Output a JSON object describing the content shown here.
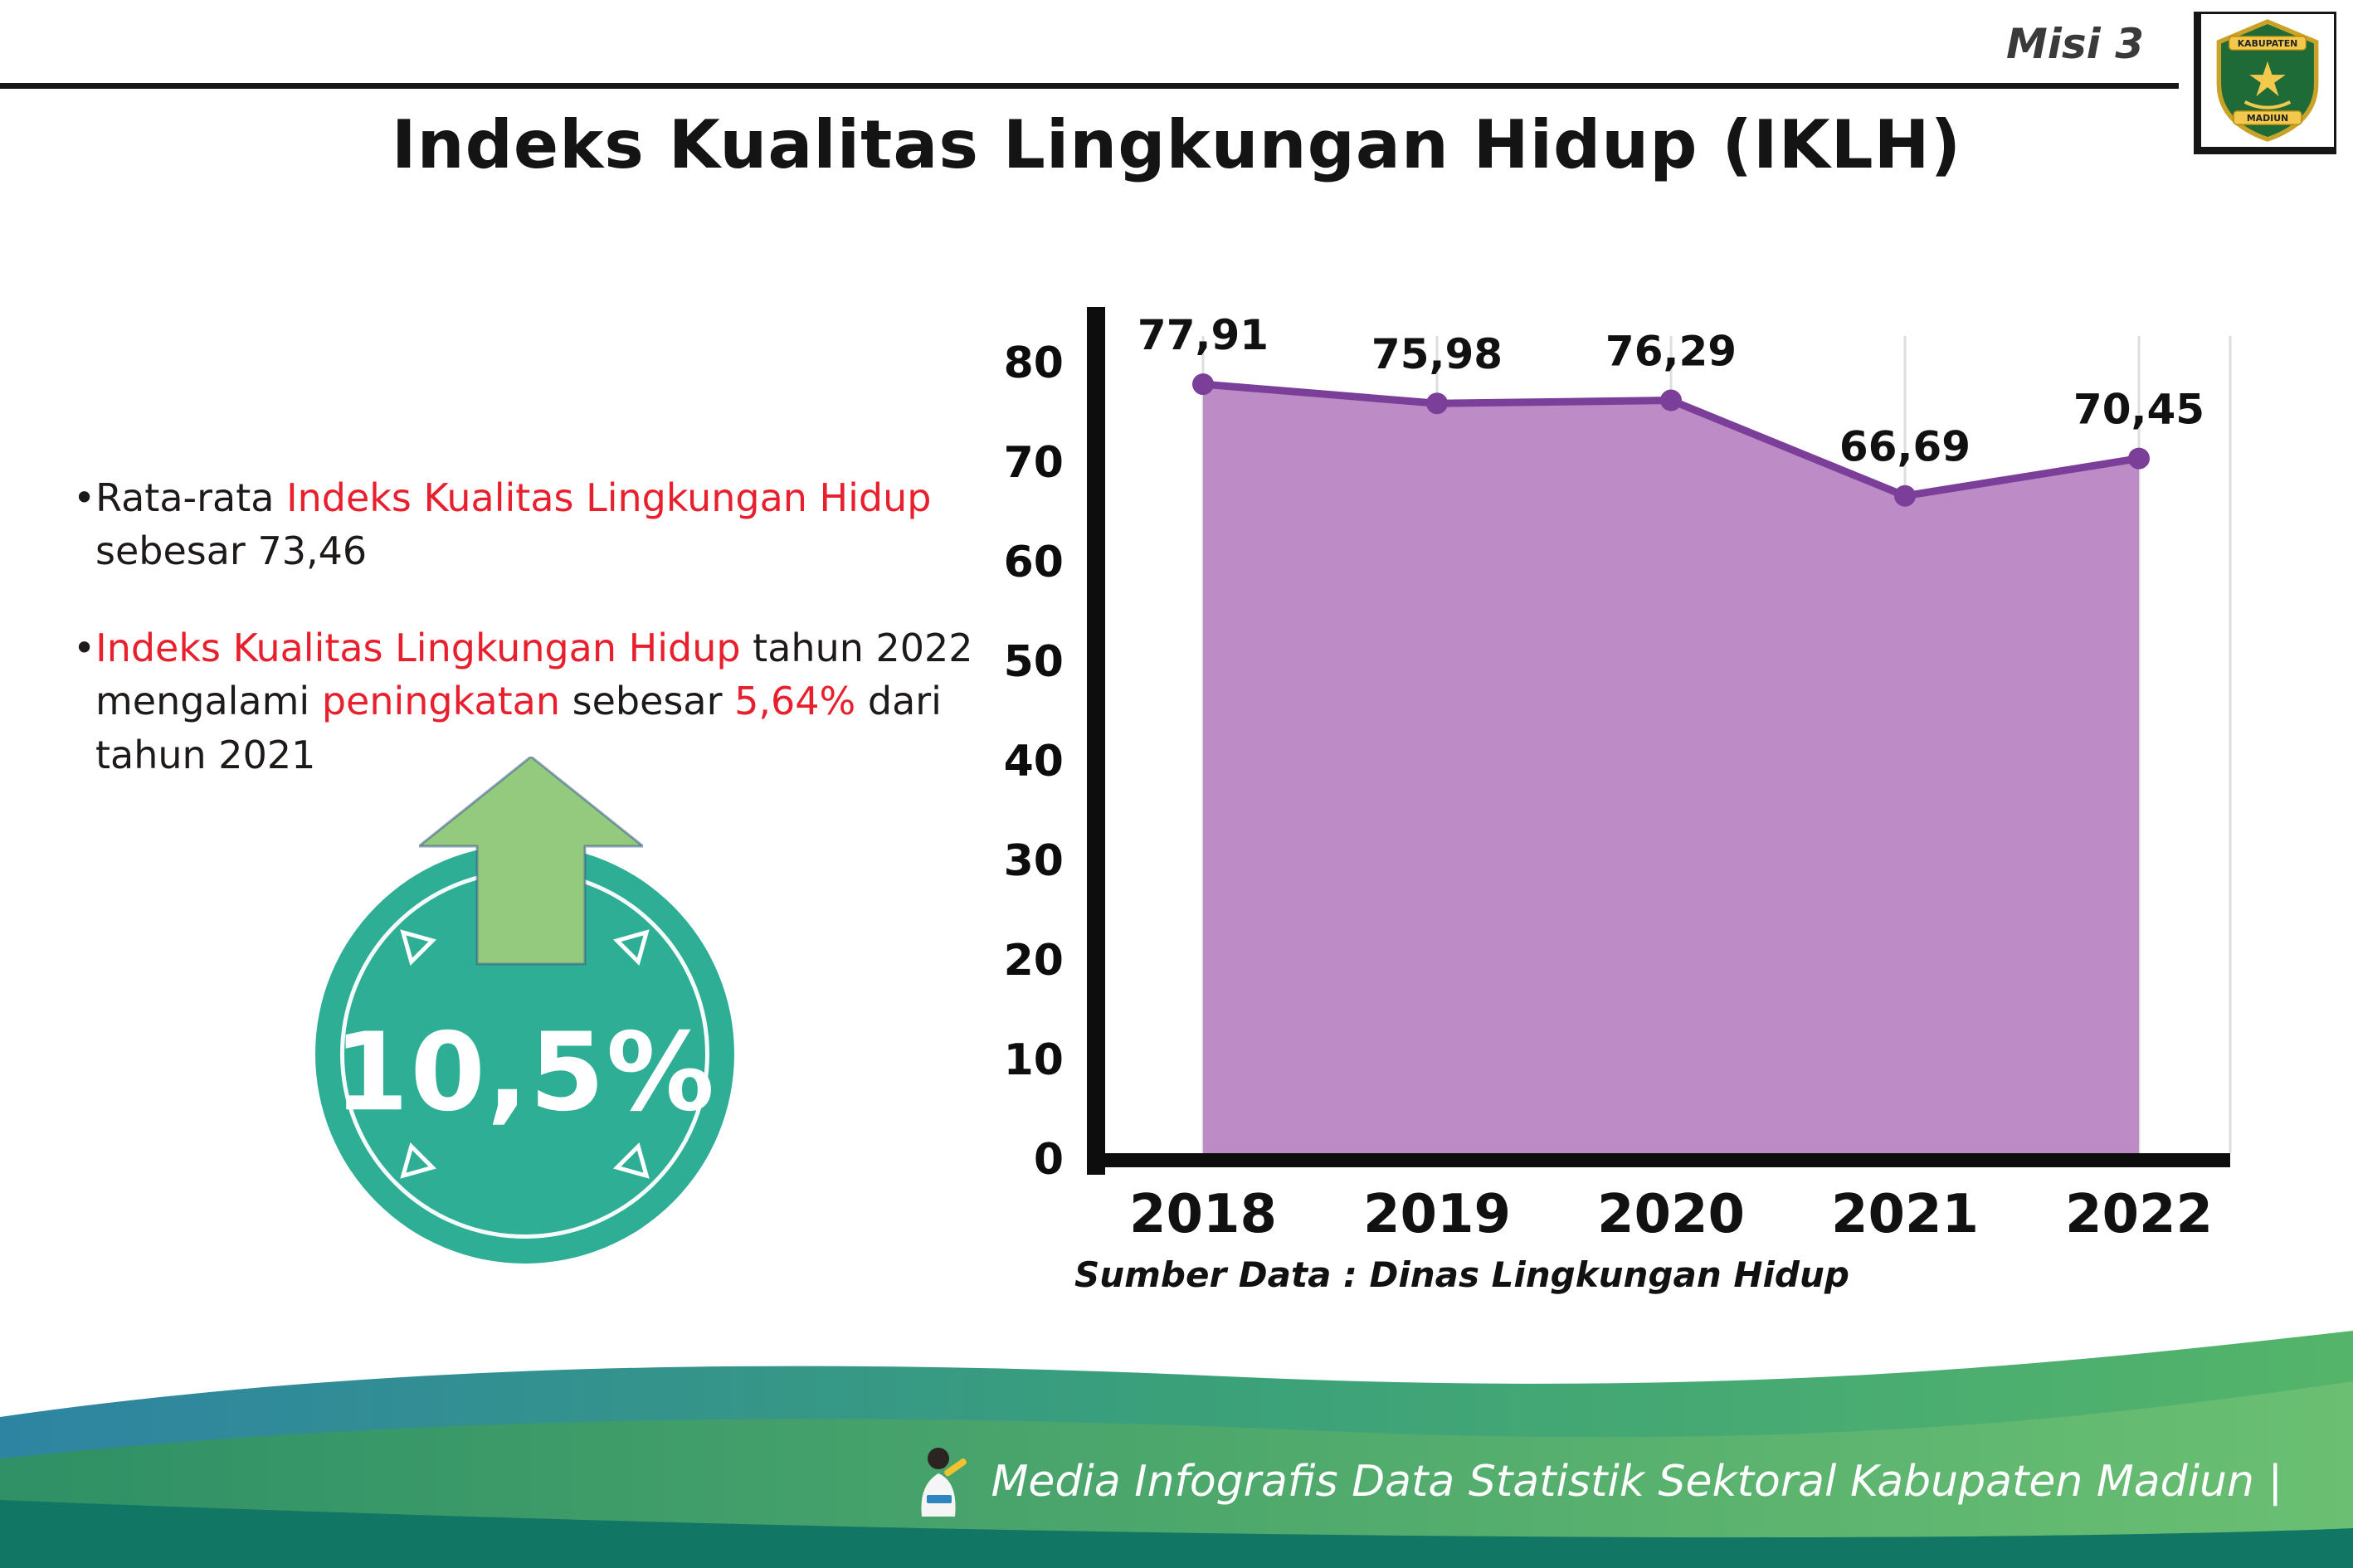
{
  "header": {
    "misi_label": "Misi 3",
    "title": "Indeks Kualitas Lingkungan Hidup (IKLH)",
    "logo": {
      "top_text": "KABUPATEN",
      "bottom_text": "MADIUN"
    }
  },
  "bullets": [
    {
      "segments": [
        {
          "text": "Rata-rata ",
          "red": false
        },
        {
          "text": "Indeks Kualitas Lingkungan Hidup",
          "red": true
        },
        {
          "text": " sebesar 73,46",
          "red": false
        }
      ]
    },
    {
      "segments": [
        {
          "text": "Indeks Kualitas Lingkungan Hidup",
          "red": true
        },
        {
          "text": " tahun 2022 mengalami ",
          "red": false
        },
        {
          "text": "peningkatan",
          "red": true
        },
        {
          "text": " sebesar ",
          "red": false
        },
        {
          "text": "5,64%",
          "red": true
        },
        {
          "text": " dari tahun 2021",
          "red": false
        }
      ]
    }
  ],
  "badge": {
    "value": "10,5%"
  },
  "chart_data": {
    "type": "area",
    "title": "Indeks Kualitas Lingkungan Hidup (IKLH)",
    "categories": [
      "2018",
      "2019",
      "2020",
      "2021",
      "2022"
    ],
    "values": [
      77.91,
      75.98,
      76.29,
      66.69,
      70.45
    ],
    "point_labels": [
      "77,91",
      "75,98",
      "76,29",
      "66,69",
      "70,45"
    ],
    "ylim": [
      0,
      80
    ],
    "yticks": [
      0,
      10,
      20,
      30,
      40,
      50,
      60,
      70,
      80
    ],
    "grid": "vertical-light",
    "legend": "none",
    "fill_color": "#bd8cc6",
    "line_color": "#7b3f9a",
    "source": "Sumber Data : Dinas Lingkungan Hidup"
  },
  "colors": {
    "accent_red": "#e8202d",
    "badge_teal": "#2fae96",
    "arrow_green": "#94ca7d",
    "footer_dark_teal": "#127664"
  },
  "footer": {
    "text": "Media Infografis Data Statistik Sektoral Kabupaten Madiun |"
  }
}
